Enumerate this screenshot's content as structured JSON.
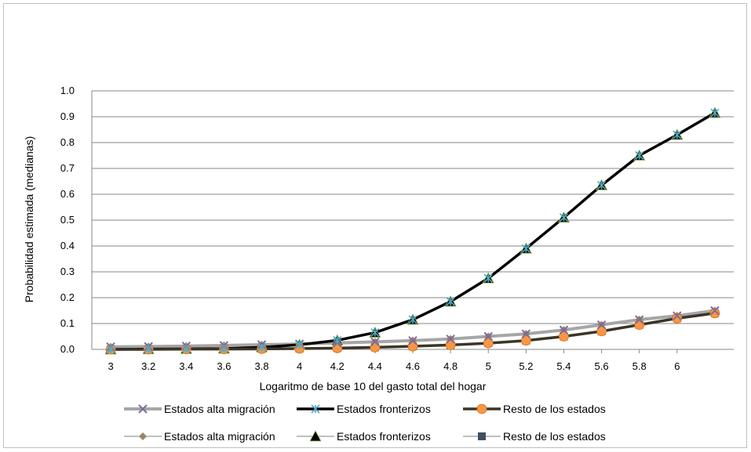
{
  "chart_data": {
    "type": "line",
    "title": "",
    "xlabel": "Logaritmo de base 10 del gasto total del hogar",
    "ylabel": "Probabilidad estimada (medianas)",
    "ylim": [
      0,
      1
    ],
    "yticks": [
      "0.0",
      "0.1",
      "0.2",
      "0.3",
      "0.4",
      "0.5",
      "0.6",
      "0.7",
      "0.8",
      "0.9",
      "1.0"
    ],
    "x": [
      3,
      3.2,
      3.4,
      3.6,
      3.8,
      4,
      4.2,
      4.4,
      4.6,
      4.8,
      5,
      5.2,
      5.4,
      5.6,
      5.8,
      6,
      6.2
    ],
    "xtick_labels": [
      "3",
      "3.2",
      "3.4",
      "3.6",
      "3.8",
      "4",
      "4.2",
      "4.4",
      "4.6",
      "4.8",
      "5",
      "5.2",
      "5.4",
      "5.6",
      "5.8",
      "6"
    ],
    "grid": true,
    "legend_position": "bottom",
    "series": [
      {
        "name": "Estados alta migración",
        "kind": "line",
        "color": "#a6a6a6",
        "marker": "x",
        "marker_color": "#7f6a9f",
        "values": [
          0.01,
          0.011,
          0.013,
          0.015,
          0.018,
          0.021,
          0.025,
          0.029,
          0.034,
          0.04,
          0.05,
          0.06,
          0.075,
          0.095,
          0.115,
          0.13,
          0.15
        ]
      },
      {
        "name": "Estados fronterizos",
        "kind": "line",
        "color": "#000000",
        "marker": "star",
        "marker_color": "#4bacc6",
        "values": [
          0.0,
          0.001,
          0.002,
          0.003,
          0.008,
          0.018,
          0.035,
          0.065,
          0.115,
          0.185,
          0.275,
          0.39,
          0.51,
          0.635,
          0.75,
          0.83,
          0.915
        ]
      },
      {
        "name": "Resto de los estados",
        "kind": "line",
        "color": "#3b3526",
        "marker": "circle",
        "marker_color": "#f79646",
        "values": [
          0.0,
          0.0,
          0.001,
          0.001,
          0.002,
          0.003,
          0.005,
          0.008,
          0.012,
          0.017,
          0.024,
          0.034,
          0.05,
          0.07,
          0.095,
          0.12,
          0.14
        ]
      },
      {
        "name": "Estados alta migración",
        "kind": "marker",
        "color": "#9c8465",
        "marker": "diamond",
        "marker_color": "#9c8465",
        "values": [
          0.01,
          0.011,
          0.013,
          0.015,
          0.018,
          0.021,
          0.025,
          0.029,
          0.034,
          0.04,
          0.05,
          0.06,
          0.075,
          0.095,
          0.115,
          0.13,
          0.15
        ]
      },
      {
        "name": "Estados fronterizos",
        "kind": "marker",
        "color": "#000000",
        "marker": "triangle",
        "marker_color": "#000000",
        "values": [
          0.0,
          0.001,
          0.002,
          0.003,
          0.008,
          0.018,
          0.035,
          0.065,
          0.115,
          0.185,
          0.275,
          0.39,
          0.51,
          0.635,
          0.75,
          0.83,
          0.915
        ]
      },
      {
        "name": "Resto de los estados",
        "kind": "marker",
        "color": "#3f4f5f",
        "marker": "square",
        "marker_color": "#3f4f5f",
        "values": [
          0.0,
          0.0,
          0.001,
          0.001,
          0.002,
          0.003,
          0.005,
          0.008,
          0.012,
          0.017,
          0.024,
          0.034,
          0.05,
          0.07,
          0.095,
          0.12,
          0.14
        ]
      }
    ]
  }
}
